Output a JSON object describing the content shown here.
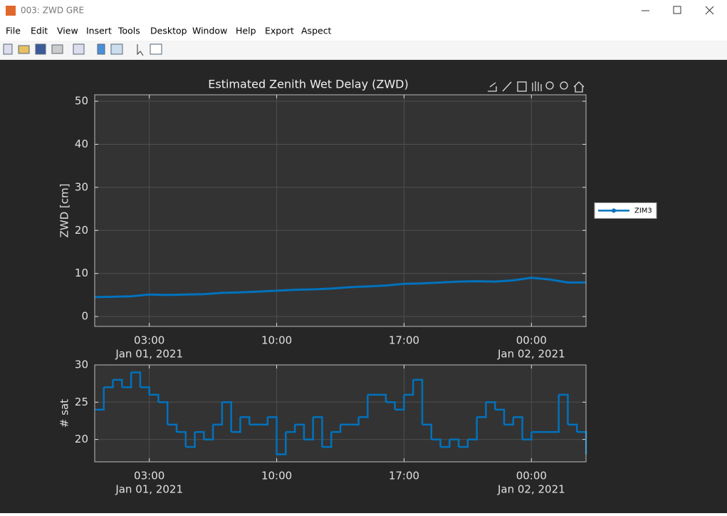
{
  "window": {
    "title": "003: ZWD GRE"
  },
  "menu": [
    "File",
    "Edit",
    "View",
    "Insert",
    "Tools",
    "Desktop",
    "Window",
    "Help",
    "Export",
    "Aspect"
  ],
  "chart_data": [
    {
      "type": "line",
      "title": "Estimated Zenith Wet Delay (ZWD)",
      "y_label": "ZWD [cm]",
      "x": [
        "2021-01-01 00:00",
        "2021-01-01 01:00",
        "2021-01-01 02:00",
        "2021-01-01 03:00",
        "2021-01-01 04:00",
        "2021-01-01 05:00",
        "2021-01-01 06:00",
        "2021-01-01 07:00",
        "2021-01-01 08:00",
        "2021-01-01 09:00",
        "2021-01-01 10:00",
        "2021-01-01 11:00",
        "2021-01-01 12:00",
        "2021-01-01 13:00",
        "2021-01-01 14:00",
        "2021-01-01 15:00",
        "2021-01-01 16:00",
        "2021-01-01 17:00",
        "2021-01-01 18:00",
        "2021-01-01 19:00",
        "2021-01-01 20:00",
        "2021-01-01 21:00",
        "2021-01-01 22:00",
        "2021-01-01 23:00",
        "2021-01-02 00:00",
        "2021-01-02 01:00",
        "2021-01-02 02:00",
        "2021-01-02 03:00"
      ],
      "series": [
        {
          "name": "ZIM3",
          "color": "#0072bd",
          "values": [
            4.5,
            4.6,
            4.7,
            5.1,
            5.0,
            5.1,
            5.2,
            5.5,
            5.6,
            5.8,
            6.0,
            6.2,
            6.3,
            6.5,
            6.8,
            7.0,
            7.2,
            7.6,
            7.7,
            7.9,
            8.1,
            8.2,
            8.1,
            8.4,
            9.0,
            8.6,
            7.9,
            7.9
          ]
        }
      ],
      "xlim": [
        "2021-01-01 00:00",
        "2021-01-02 03:00"
      ],
      "xticks": [
        {
          "value": "2021-01-01 03:00",
          "label": [
            "03:00",
            "Jan 01, 2021"
          ]
        },
        {
          "value": "2021-01-01 10:00",
          "label": [
            "10:00"
          ]
        },
        {
          "value": "2021-01-01 17:00",
          "label": [
            "17:00"
          ]
        },
        {
          "value": "2021-01-02 00:00",
          "label": [
            "00:00",
            "Jan 02, 2021"
          ]
        }
      ],
      "ylim": [
        -2.3,
        51.5
      ],
      "yticks": [
        0,
        10,
        20,
        30,
        40,
        50
      ],
      "grid": true,
      "legend": "right"
    },
    {
      "type": "line",
      "drawstyle": "steps-post",
      "y_label": "# sat",
      "color": "#0072bd",
      "x": [
        "2021-01-01 00:00",
        "2021-01-01 00:30",
        "2021-01-01 01:00",
        "2021-01-01 01:30",
        "2021-01-01 02:00",
        "2021-01-01 02:30",
        "2021-01-01 03:00",
        "2021-01-01 03:30",
        "2021-01-01 04:00",
        "2021-01-01 04:30",
        "2021-01-01 05:00",
        "2021-01-01 05:30",
        "2021-01-01 06:00",
        "2021-01-01 06:30",
        "2021-01-01 07:00",
        "2021-01-01 07:30",
        "2021-01-01 08:00",
        "2021-01-01 08:30",
        "2021-01-01 09:00",
        "2021-01-01 09:30",
        "2021-01-01 10:00",
        "2021-01-01 10:30",
        "2021-01-01 11:00",
        "2021-01-01 11:30",
        "2021-01-01 12:00",
        "2021-01-01 12:30",
        "2021-01-01 13:00",
        "2021-01-01 13:30",
        "2021-01-01 14:00",
        "2021-01-01 14:30",
        "2021-01-01 15:00",
        "2021-01-01 15:30",
        "2021-01-01 16:00",
        "2021-01-01 16:30",
        "2021-01-01 17:00",
        "2021-01-01 17:30",
        "2021-01-01 18:00",
        "2021-01-01 18:30",
        "2021-01-01 19:00",
        "2021-01-01 19:30",
        "2021-01-01 20:00",
        "2021-01-01 20:30",
        "2021-01-01 21:00",
        "2021-01-01 21:30",
        "2021-01-01 22:00",
        "2021-01-01 22:30",
        "2021-01-01 23:00",
        "2021-01-01 23:30",
        "2021-01-02 00:00",
        "2021-01-02 00:30",
        "2021-01-02 01:00",
        "2021-01-02 01:30",
        "2021-01-02 02:00",
        "2021-01-02 02:30",
        "2021-01-02 03:00"
      ],
      "values": [
        24,
        27,
        28,
        27,
        29,
        27,
        26,
        25,
        22,
        21,
        19,
        21,
        20,
        22,
        25,
        21,
        23,
        22,
        22,
        23,
        18,
        21,
        22,
        20,
        23,
        19,
        21,
        22,
        22,
        23,
        26,
        26,
        25,
        24,
        26,
        28,
        22,
        20,
        19,
        20,
        19,
        20,
        23,
        25,
        24,
        22,
        23,
        20,
        21,
        21,
        21,
        26,
        22,
        21,
        18
      ],
      "xlim": [
        "2021-01-01 00:00",
        "2021-01-02 03:00"
      ],
      "xticks": [
        {
          "value": "2021-01-01 03:00",
          "label": [
            "03:00",
            "Jan 01, 2021"
          ]
        },
        {
          "value": "2021-01-01 10:00",
          "label": [
            "10:00"
          ]
        },
        {
          "value": "2021-01-01 17:00",
          "label": [
            "17:00"
          ]
        },
        {
          "value": "2021-01-02 00:00",
          "label": [
            "00:00",
            "Jan 02, 2021"
          ]
        }
      ],
      "ylim": [
        17,
        30
      ],
      "yticks": [
        20,
        25,
        30
      ],
      "grid": true
    }
  ]
}
